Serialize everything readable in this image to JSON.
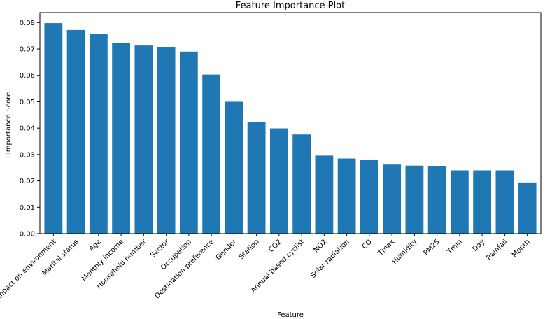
{
  "chart_data": {
    "type": "bar",
    "title": "Feature Importance Plot",
    "xlabel": "Feature",
    "ylabel": "Importance Score",
    "categories": [
      "Impact on environment",
      "Marital status",
      "Age",
      "Monthly income",
      "Household number",
      "Sector",
      "Occupation",
      "Destination preference",
      "Gender",
      "Station",
      "CO2",
      "Annual based cyclist",
      "NO2",
      "Solar radiation",
      "CO",
      "Tmax",
      "Humidity",
      "PM25",
      "Tmin",
      "Day",
      "Rainfall",
      "Month"
    ],
    "values": [
      0.0798,
      0.0772,
      0.0756,
      0.0722,
      0.0713,
      0.0708,
      0.069,
      0.0603,
      0.05,
      0.0422,
      0.0399,
      0.0376,
      0.0296,
      0.0285,
      0.028,
      0.0262,
      0.0258,
      0.0257,
      0.024,
      0.024,
      0.024,
      0.0194
    ],
    "yticks": [
      "0.00",
      "0.01",
      "0.02",
      "0.03",
      "0.04",
      "0.05",
      "0.06",
      "0.07",
      "0.08"
    ],
    "ylim": [
      0,
      0.0838
    ],
    "grid": false,
    "colors": {
      "bar": "#1f77b4"
    }
  }
}
